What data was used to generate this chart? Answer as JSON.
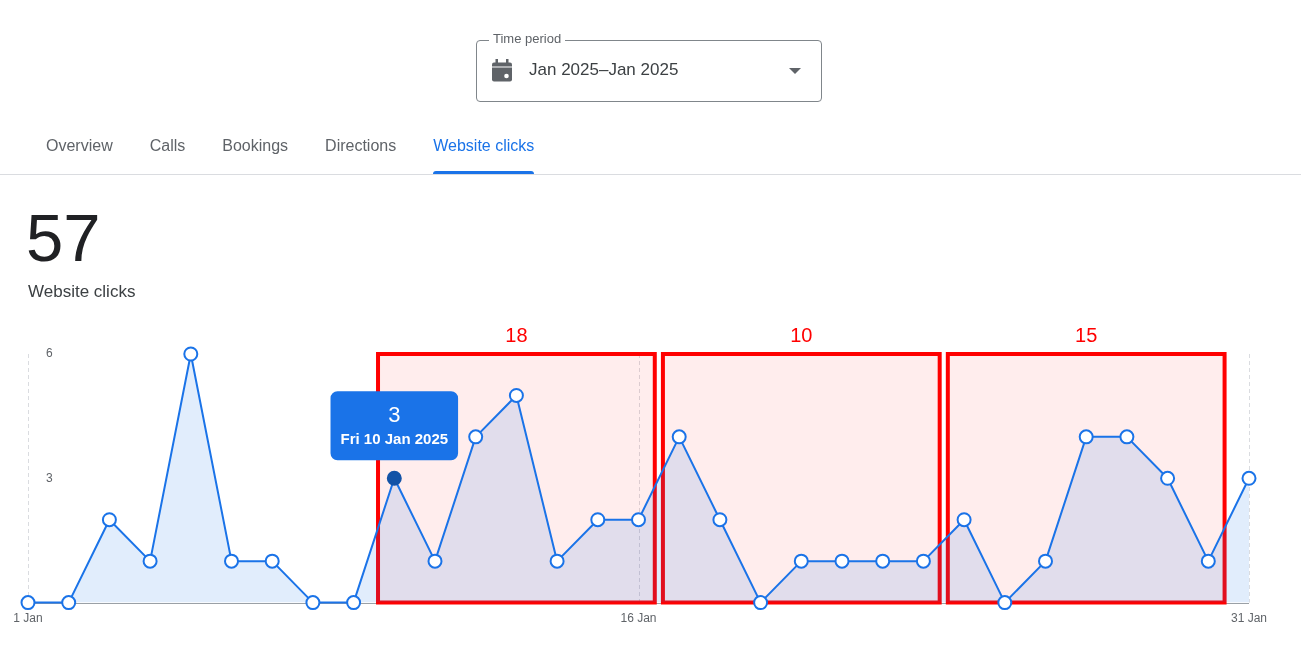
{
  "chart_data": {
    "type": "area",
    "title": "57",
    "subtitle": "Website clicks",
    "x": [
      "2025-01-01",
      "2025-01-02",
      "2025-01-03",
      "2025-01-04",
      "2025-01-05",
      "2025-01-06",
      "2025-01-07",
      "2025-01-08",
      "2025-01-09",
      "2025-01-10",
      "2025-01-11",
      "2025-01-12",
      "2025-01-13",
      "2025-01-14",
      "2025-01-15",
      "2025-01-16",
      "2025-01-17",
      "2025-01-18",
      "2025-01-19",
      "2025-01-20",
      "2025-01-21",
      "2025-01-22",
      "2025-01-23",
      "2025-01-24",
      "2025-01-25",
      "2025-01-26",
      "2025-01-27",
      "2025-01-28",
      "2025-01-29",
      "2025-01-30",
      "2025-01-31"
    ],
    "series": [
      {
        "color": "#1a73e8",
        "values": [
          0,
          0,
          2,
          1,
          6,
          1,
          1,
          0,
          0,
          3,
          1,
          4,
          5,
          1,
          2,
          2,
          4,
          2,
          0,
          1,
          1,
          1,
          1,
          2,
          0,
          1,
          4,
          4,
          3,
          1,
          3
        ]
      }
    ],
    "xlim": [
      "2025-01-01",
      "2025-01-31"
    ],
    "xticks": [
      {
        "value": "2025-01-01",
        "label": "1 Jan"
      },
      {
        "value": "2025-01-16",
        "label": "16 Jan"
      },
      {
        "value": "2025-01-31",
        "label": "31 Jan"
      }
    ],
    "ylim": [
      0,
      6
    ],
    "yticks": [
      3,
      6
    ],
    "grid": "x",
    "marker": "circle",
    "line_style": "solid",
    "bands": [
      {
        "axis": "x",
        "from": "2025-01-09T14:24",
        "to": "2025-01-16T09:36",
        "label": "18",
        "color": "#ff0000"
      },
      {
        "axis": "x",
        "from": "2025-01-16T14:24",
        "to": "2025-01-23T09:36",
        "label": "10",
        "color": "#ff0000"
      },
      {
        "axis": "x",
        "from": "2025-01-23T14:24",
        "to": "2025-01-30T09:36",
        "label": "15",
        "color": "#ff0000"
      }
    ],
    "annotations": [
      "Time period",
      "Jan 2025–Jan 2025",
      "Overview",
      "Calls",
      "Bookings",
      "Directions",
      "Website clicks",
      {
        "text": "3",
        "x": "2025-01-10",
        "y": 3
      },
      {
        "text": "Fri 10 Jan 2025",
        "x": "2025-01-10",
        "y": 3
      }
    ]
  }
}
